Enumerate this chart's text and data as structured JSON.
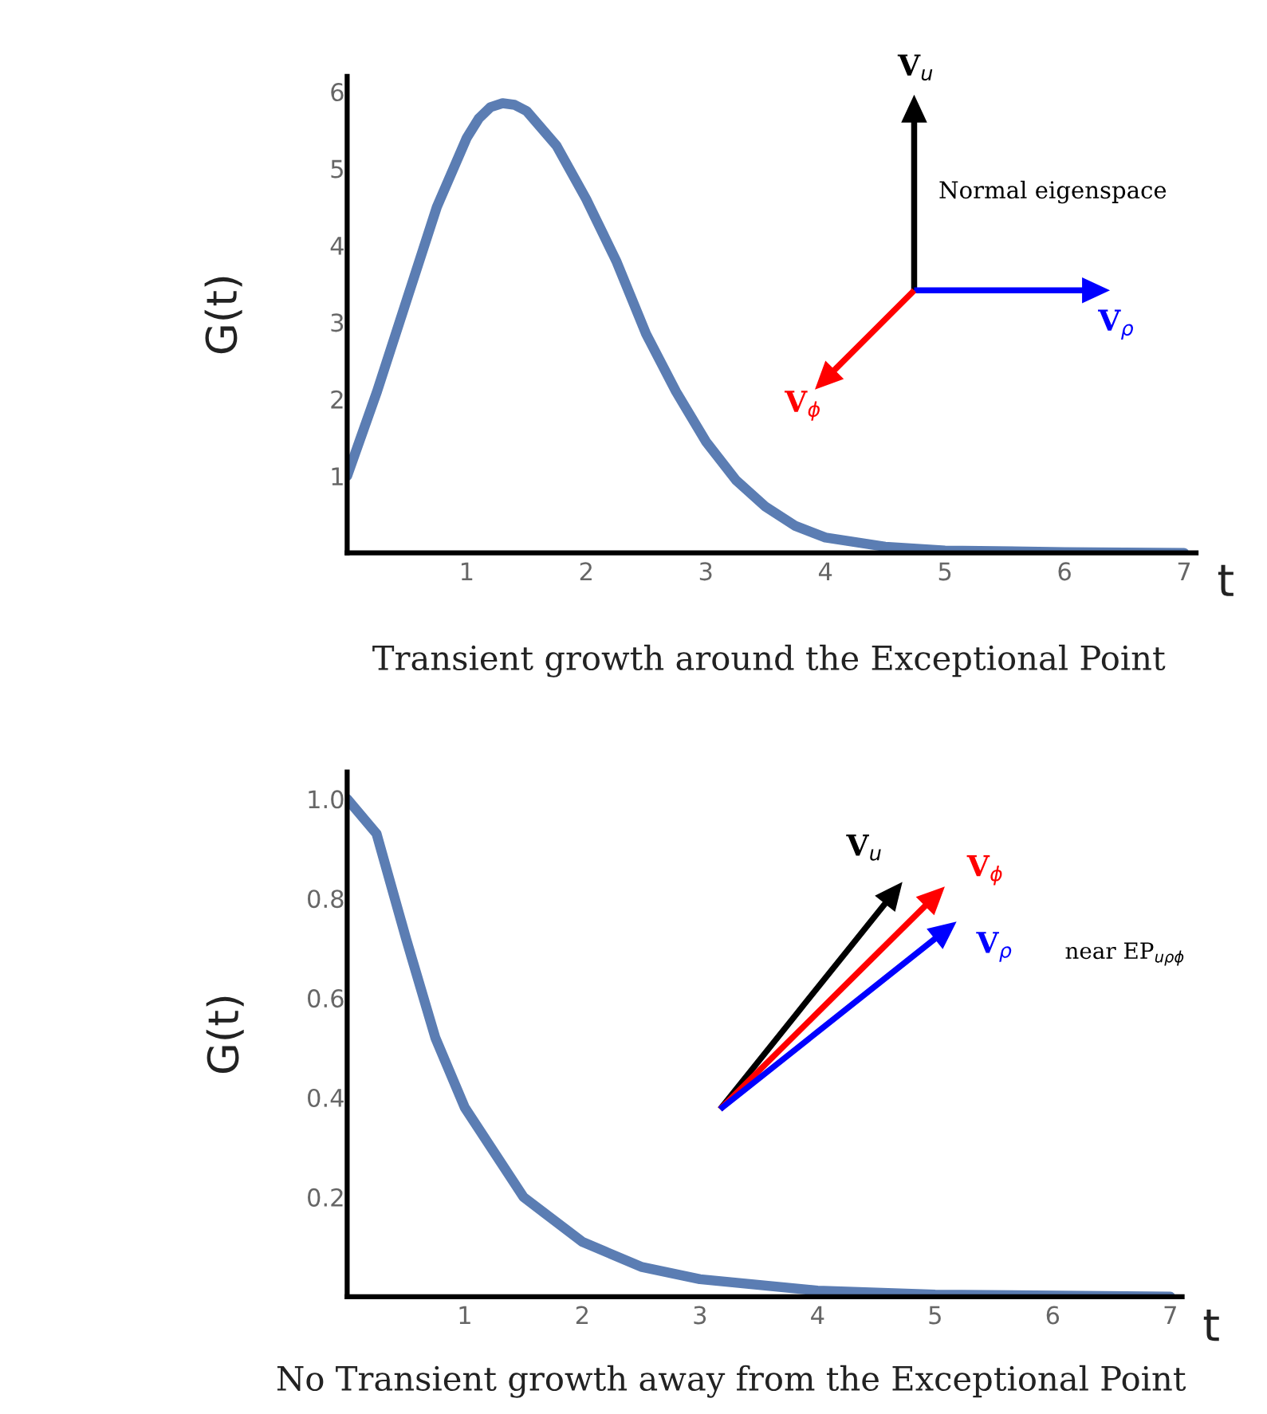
{
  "chart_data": [
    {
      "type": "line",
      "x": [
        0,
        0.25,
        0.5,
        0.75,
        1,
        1.1,
        1.2,
        1.3,
        1.4,
        1.5,
        1.75,
        2,
        2.25,
        2.5,
        2.75,
        3,
        3.25,
        3.5,
        3.75,
        4,
        4.5,
        5,
        6,
        7
      ],
      "series": [
        {
          "color": "#5b7db3",
          "values": [
            1.0,
            2.1,
            3.3,
            4.5,
            5.4,
            5.65,
            5.8,
            5.85,
            5.83,
            5.75,
            5.3,
            4.6,
            3.8,
            2.85,
            2.1,
            1.45,
            0.95,
            0.6,
            0.35,
            0.2,
            0.08,
            0.03,
            0.01,
            0
          ]
        }
      ],
      "xlim": [
        0,
        7.1
      ],
      "ylim": [
        0,
        6.2
      ],
      "xticks": [
        1,
        2,
        3,
        4,
        5,
        6,
        7
      ],
      "yticks": [
        1,
        2,
        3,
        4,
        5,
        6
      ],
      "xlabel": "t",
      "ylabel": "G(t)",
      "grid": false,
      "legend": false,
      "annotations": [
        "Transient growth around the Exceptional Point",
        "V$_{u}$",
        "Normal eigenspace",
        "V$_{ρ}$",
        "V$_{ϕ}$"
      ]
    },
    {
      "type": "line",
      "x": [
        0,
        0.25,
        0.5,
        0.75,
        1,
        1.5,
        2,
        2.5,
        3,
        4,
        5,
        7
      ],
      "series": [
        {
          "color": "#5b7db3",
          "values": [
            1.0,
            0.93,
            0.72,
            0.52,
            0.38,
            0.2,
            0.11,
            0.06,
            0.035,
            0.012,
            0.004,
            0
          ]
        }
      ],
      "xlim": [
        0,
        7.1
      ],
      "ylim": [
        0,
        1.054
      ],
      "xticks": [
        1,
        2,
        3,
        4,
        5,
        6,
        7
      ],
      "yticks": [
        {
          "value": 0.2,
          "label": "0.2"
        },
        {
          "value": 0.4,
          "label": "0.4"
        },
        {
          "value": 0.6,
          "label": "0.6"
        },
        {
          "value": 0.8,
          "label": "0.8"
        },
        {
          "value": 1.0,
          "label": "1.0"
        }
      ],
      "xlabel": "t",
      "ylabel": "G(t)",
      "grid": false,
      "legend": false,
      "annotations": [
        "No Transient growth away from the Exceptional Point",
        "V$_{u}$",
        "V$_{ϕ}$",
        "V$_{ρ}$",
        "near EP$_{uρϕ}$"
      ]
    }
  ]
}
